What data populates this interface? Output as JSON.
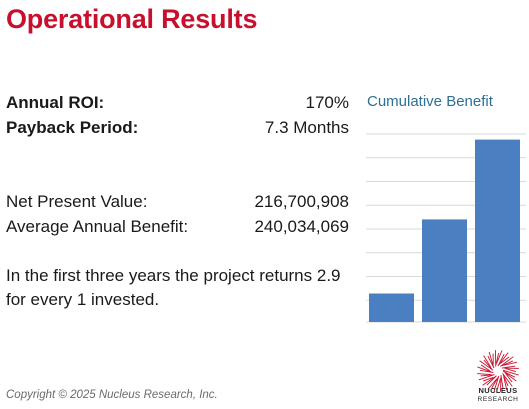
{
  "title": "Operational Results",
  "metrics": {
    "roi": {
      "label": "Annual ROI:",
      "value": "170%"
    },
    "payback": {
      "label": "Payback Period:",
      "value": "7.3 Months"
    },
    "npv": {
      "label": "Net Present Value:",
      "value": "216,700,908"
    },
    "avg_benefit": {
      "label": "Average Annual Benefit:",
      "value": "240,034,069"
    }
  },
  "summary": "In the first three years the project returns 2.9 for every 1 invested.",
  "chart_data": {
    "type": "bar",
    "title": "Cumulative Benefit",
    "categories": [
      "",
      "",
      ""
    ],
    "values": [
      30,
      108,
      192
    ],
    "ylim": [
      0,
      200
    ],
    "grid": true,
    "bar_color": "#4a7fc1",
    "grid_color": "#d9d9d9"
  },
  "logo": {
    "line1": "NUCLEUS",
    "line2": "RESEARCH",
    "color": "#c8102e"
  },
  "copyright": "Copyright © 2025 Nucleus Research, Inc."
}
